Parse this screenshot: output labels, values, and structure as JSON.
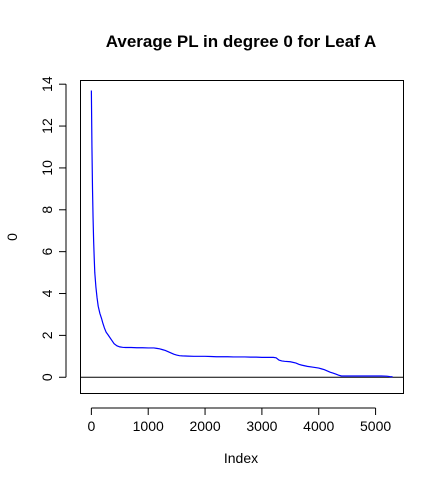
{
  "chart_data": {
    "type": "line",
    "title": "Average PL in degree 0 for Leaf A",
    "xlabel": "Index",
    "ylabel": "0",
    "xlim": [
      -200,
      5500
    ],
    "ylim": [
      -0.8,
      14.2
    ],
    "x_ticks": [
      0,
      1000,
      2000,
      3000,
      4000,
      5000
    ],
    "y_ticks": [
      0,
      2,
      4,
      6,
      8,
      10,
      12,
      14
    ],
    "hline": 0,
    "line_color": "#0000ff",
    "series": [
      {
        "x": [
          0,
          10,
          20,
          30,
          40,
          50,
          60,
          80,
          100,
          120,
          150,
          180,
          200,
          230,
          260,
          300,
          350,
          400,
          450,
          500,
          550,
          600,
          700,
          800,
          900,
          1000,
          1100,
          1150,
          1200,
          1250,
          1300,
          1350,
          1400,
          1450,
          1500,
          1550,
          1600,
          1700,
          1800,
          1900,
          2000,
          2100,
          2200,
          2300,
          2400,
          2500,
          2600,
          2700,
          2800,
          2900,
          3000,
          3100,
          3200,
          3250,
          3300,
          3350,
          3400,
          3500,
          3600,
          3650,
          3700,
          3750,
          3800,
          3900,
          4000,
          4050,
          4100,
          4150,
          4200,
          4250,
          4300,
          4350,
          4400,
          4500,
          4600,
          4700,
          4800,
          4900,
          5000,
          5100,
          5200,
          5250,
          5300
        ],
        "y": [
          13.7,
          11.0,
          9.0,
          7.6,
          6.5,
          5.7,
          5.0,
          4.3,
          3.8,
          3.4,
          3.05,
          2.8,
          2.6,
          2.35,
          2.15,
          2.0,
          1.8,
          1.6,
          1.5,
          1.45,
          1.43,
          1.42,
          1.42,
          1.41,
          1.41,
          1.4,
          1.4,
          1.38,
          1.36,
          1.32,
          1.28,
          1.22,
          1.16,
          1.1,
          1.06,
          1.03,
          1.02,
          1.01,
          1.0,
          1.0,
          1.0,
          0.99,
          0.98,
          0.98,
          0.98,
          0.97,
          0.97,
          0.97,
          0.96,
          0.96,
          0.95,
          0.95,
          0.95,
          0.93,
          0.82,
          0.78,
          0.76,
          0.74,
          0.68,
          0.62,
          0.58,
          0.55,
          0.52,
          0.48,
          0.44,
          0.4,
          0.36,
          0.3,
          0.24,
          0.2,
          0.15,
          0.1,
          0.06,
          0.06,
          0.06,
          0.06,
          0.06,
          0.06,
          0.06,
          0.06,
          0.05,
          0.03,
          0.02
        ]
      }
    ]
  }
}
